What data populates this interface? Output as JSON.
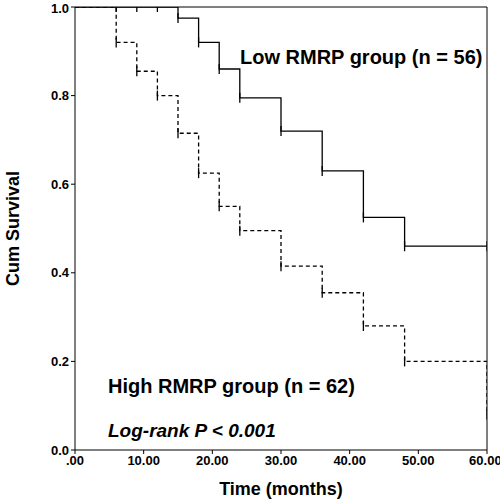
{
  "chart_data": {
    "type": "kaplan_meier",
    "x_label": "Time (months)",
    "y_label": "Cum Survival",
    "xlim": [
      0,
      60
    ],
    "xticks": [
      {
        "value": 0,
        "label": ".00"
      },
      {
        "value": 10,
        "label": "10.00"
      },
      {
        "value": 20,
        "label": "20.00"
      },
      {
        "value": 30,
        "label": "30.00"
      },
      {
        "value": 40,
        "label": "40.00"
      },
      {
        "value": 50,
        "label": "50.00"
      },
      {
        "value": 60,
        "label": "60.00"
      }
    ],
    "ylim": [
      0,
      1
    ],
    "yticks": [
      {
        "value": 0,
        "label": "0.0"
      },
      0.2,
      0.4,
      0.6,
      0.8,
      {
        "value": 1,
        "label": "1.0"
      }
    ],
    "annotations": [
      "Log-rank P < 0.001"
    ],
    "legend": false,
    "series": [
      {
        "name": "Low RMRP group (n = 56)",
        "color": "#000000",
        "line_style": "solid",
        "marker": "censor",
        "x": [
          0,
          6,
          9,
          12,
          15,
          18,
          21,
          24,
          30,
          36,
          42,
          48,
          60
        ],
        "values": [
          1,
          1,
          1,
          1,
          0.975,
          0.92,
          0.86,
          0.795,
          0.72,
          0.63,
          0.525,
          0.46,
          0.46
        ],
        "censored": [
          6,
          9,
          12,
          15,
          18,
          21,
          24,
          30,
          36,
          42,
          48,
          60
        ]
      },
      {
        "name": "High RMRP group (n = 62)",
        "color": "#000000",
        "line_style": "dashed",
        "marker": "censor",
        "x": [
          0,
          6,
          9,
          12,
          15,
          18,
          21,
          24,
          30,
          36,
          42,
          48,
          60
        ],
        "values": [
          1,
          0.92,
          0.855,
          0.8,
          0.715,
          0.625,
          0.55,
          0.495,
          0.415,
          0.355,
          0.28,
          0.2,
          0.08
        ],
        "censored": [
          6,
          9,
          12,
          15,
          18,
          21,
          24,
          30,
          36,
          42,
          48,
          60
        ]
      }
    ]
  }
}
